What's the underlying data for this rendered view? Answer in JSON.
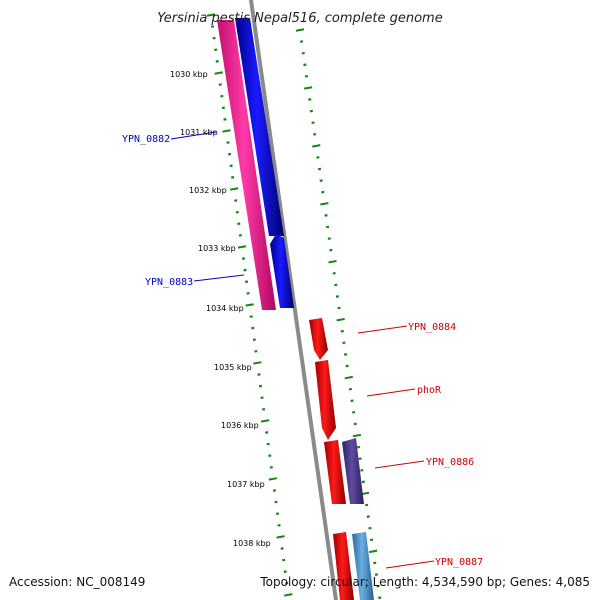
{
  "title": "Yersinia pestis Nepal516, complete genome",
  "accession": "Accession: NC_008149",
  "summary": "Topology: circular; Length: 4,534,590 bp; Genes: 4,085",
  "ticks": [
    "1030 kbp",
    "1031 kbp",
    "1032 kbp",
    "1033 kbp",
    "1034 kbp",
    "1035 kbp",
    "1036 kbp",
    "1037 kbp",
    "1038 kbp"
  ],
  "genes": [
    {
      "name": "YPN_0882",
      "strand": "minus",
      "color": "#0000ee",
      "label_color": "#0000cc"
    },
    {
      "name": "YPN_0883",
      "strand": "minus",
      "color": "#0000ee",
      "label_color": "#0000cc"
    },
    {
      "name": "YPN_0884",
      "strand": "plus",
      "color": "#ee0000",
      "label_color": "#cc0000"
    },
    {
      "name": "phoR",
      "strand": "plus",
      "color": "#ee0000",
      "label_color": "#cc0000"
    },
    {
      "name": "YPN_0886",
      "strand": "plus",
      "color": "#ee0000",
      "label_color": "#cc0000"
    },
    {
      "name": "YPN_0887",
      "strand": "plus",
      "color": "#ee0000",
      "label_color": "#cc0000"
    }
  ],
  "colors": {
    "backbone": "#888888",
    "cds_minus": "#0000ee",
    "cds_plus": "#ee0000",
    "rna_minus": "#ff1493",
    "rna_plus_purple": "#4b3a8a",
    "rna_plus_blue": "#4a90c8",
    "tick_color": "#118811"
  }
}
